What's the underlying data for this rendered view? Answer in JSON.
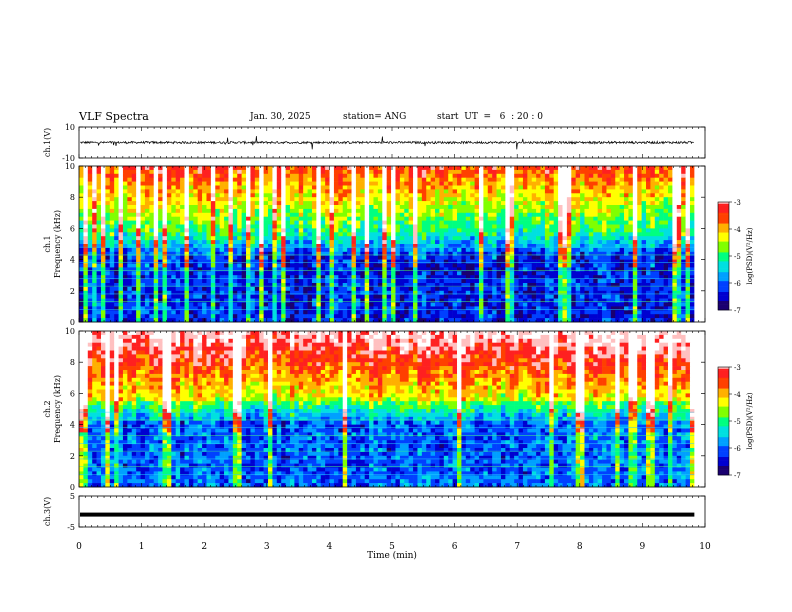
{
  "header": {
    "title": "VLF Spectra",
    "date": "Jan. 30, 2025",
    "station": "station= ANG",
    "start_ut": "start  UT  =   6  : 20 : 0"
  },
  "chart_data": [
    {
      "type": "line",
      "name": "ch1-waveform",
      "ylabel": "ch.1(V)",
      "ylim": [
        -10,
        10
      ],
      "yticks": [
        "10",
        "-10"
      ],
      "baseline": 0,
      "x_range_min": [
        0,
        9.83
      ]
    },
    {
      "type": "heatmap",
      "name": "ch1-spectrogram",
      "ylabel": "ch.1 Frequency (kHz)",
      "ylim": [
        0,
        10
      ],
      "yticks": [
        "0",
        "2",
        "4",
        "6",
        "8",
        "10"
      ],
      "x_range_min": [
        0,
        9.83
      ],
      "colorbar": {
        "label": "log(PSD)(V²/Hz)",
        "range": [
          -7,
          -3
        ],
        "ticks": [
          "-3",
          "-4",
          "-5",
          "-6",
          "-7"
        ]
      }
    },
    {
      "type": "heatmap",
      "name": "ch2-spectrogram",
      "ylabel": "ch.2 Frequency (kHz)",
      "ylim": [
        0,
        10
      ],
      "yticks": [
        "0",
        "2",
        "4",
        "6",
        "8",
        "10"
      ],
      "x_range_min": [
        0,
        9.83
      ],
      "colorbar": {
        "label": "log(PSD)(V²/Hz)",
        "range": [
          -7,
          -3
        ],
        "ticks": [
          "-3",
          "-4",
          "-5",
          "-6",
          "-7"
        ]
      }
    },
    {
      "type": "line",
      "name": "ch3-waveform",
      "ylabel": "ch.3(V)",
      "ylim": [
        -5,
        5
      ],
      "yticks": [
        "5",
        "-5"
      ],
      "baseline": -1,
      "x_range_min": [
        0,
        9.83
      ]
    }
  ],
  "xaxis": {
    "label": "Time  (min)",
    "ticks": [
      "0",
      "1",
      "2",
      "3",
      "4",
      "5",
      "6",
      "7",
      "8",
      "9",
      "10"
    ],
    "range": [
      0,
      10
    ]
  },
  "colors": {
    "scale": [
      "#1a0070",
      "#0000d0",
      "#0040ff",
      "#00a0ff",
      "#00e0e0",
      "#00ff80",
      "#80ff00",
      "#ffff00",
      "#ffb000",
      "#ff4000",
      "#ff2020",
      "#ffc0c0",
      "#ffffff"
    ]
  }
}
